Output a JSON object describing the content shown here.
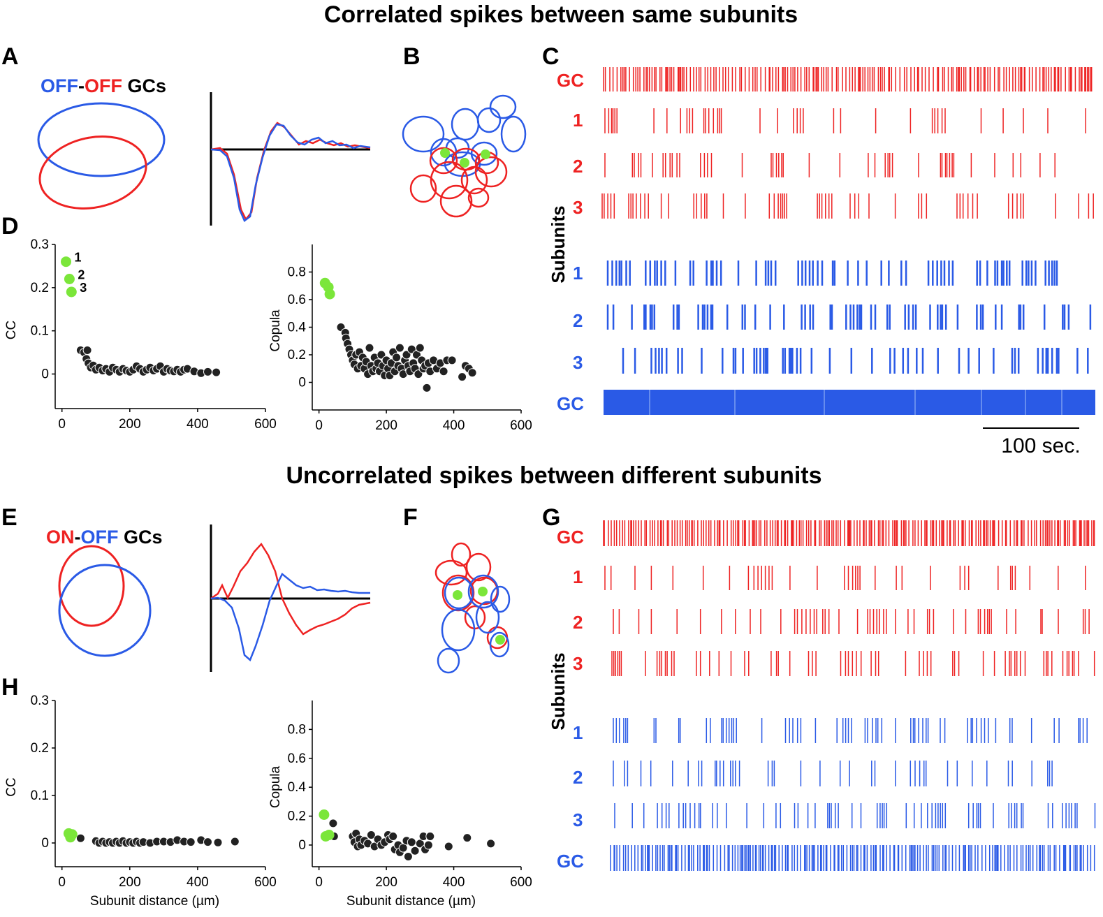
{
  "colors": {
    "red": "#ee2222",
    "blue": "#2a5ae6",
    "green": "#7be63a",
    "dot": "#222222",
    "axis": "#000000"
  },
  "top": {
    "title": "Correlated spikes between same subunits",
    "panel_A": "A",
    "panel_B": "B",
    "panel_C": "C",
    "panel_D": "D",
    "legend": {
      "part1": "OFF",
      "sep": "-",
      "part2": "OFF",
      "suffix": " GCs"
    },
    "raster": {
      "gc_label": "GC",
      "subunits_label": "Subunits",
      "labels": [
        "1",
        "2",
        "3"
      ]
    },
    "scale_label": "100 sec.",
    "green_labels": [
      "1",
      "2",
      "3"
    ]
  },
  "bottom": {
    "title": "Uncorrelated spikes between different subunits",
    "panel_E": "E",
    "panel_F": "F",
    "panel_G": "G",
    "panel_H": "H",
    "legend": {
      "part1": "ON",
      "sep": "-",
      "part2": "OFF",
      "suffix": " GCs"
    },
    "raster": {
      "gc_label": "GC",
      "subunits_label": "Subunits",
      "labels": [
        "1",
        "2",
        "3"
      ]
    }
  },
  "chart_data": [
    {
      "id": "D-left",
      "type": "scatter",
      "xlabel": "",
      "ylabel": "CC",
      "xlim": [
        -20,
        600
      ],
      "ylim": [
        -0.08,
        0.3
      ],
      "xticks": [
        "0",
        "200",
        "400",
        "600"
      ],
      "yticks": [
        "0",
        "0.1",
        "0.2",
        "0.3"
      ],
      "green": [
        [
          12,
          0.26
        ],
        [
          22,
          0.22
        ],
        [
          28,
          0.19
        ]
      ],
      "black": [
        [
          55,
          0.055
        ],
        [
          65,
          0.05
        ],
        [
          75,
          0.055
        ],
        [
          72,
          0.035
        ],
        [
          78,
          0.025
        ],
        [
          85,
          0.015
        ],
        [
          92,
          0.02
        ],
        [
          100,
          0.01
        ],
        [
          110,
          0.015
        ],
        [
          120,
          0.008
        ],
        [
          130,
          0.012
        ],
        [
          140,
          0.005
        ],
        [
          150,
          0.015
        ],
        [
          160,
          0.01
        ],
        [
          170,
          0.005
        ],
        [
          180,
          0.012
        ],
        [
          190,
          0.008
        ],
        [
          200,
          0.005
        ],
        [
          210,
          0.01
        ],
        [
          220,
          0.018
        ],
        [
          230,
          0.012
        ],
        [
          240,
          0.005
        ],
        [
          250,
          0.01
        ],
        [
          260,
          0.015
        ],
        [
          270,
          0.008
        ],
        [
          280,
          0.012
        ],
        [
          290,
          0.018
        ],
        [
          300,
          0.005
        ],
        [
          310,
          0.012
        ],
        [
          320,
          0.008
        ],
        [
          330,
          0.006
        ],
        [
          340,
          0.01
        ],
        [
          350,
          0.005
        ],
        [
          360,
          0.01
        ],
        [
          370,
          0.012
        ],
        [
          390,
          0.006
        ],
        [
          410,
          0.002
        ],
        [
          430,
          0.005
        ],
        [
          455,
          0.004
        ]
      ]
    },
    {
      "id": "D-right",
      "type": "scatter",
      "xlabel": "",
      "ylabel": "Copula",
      "xlim": [
        -20,
        600
      ],
      "ylim": [
        -0.2,
        1.0
      ],
      "xticks": [
        "0",
        "200",
        "400",
        "600"
      ],
      "yticks": [
        "0",
        "0.2",
        "0.4",
        "0.6",
        "0.8"
      ],
      "green": [
        [
          18,
          0.72
        ],
        [
          28,
          0.69
        ],
        [
          32,
          0.64
        ]
      ],
      "black": [
        [
          65,
          0.4
        ],
        [
          78,
          0.36
        ],
        [
          80,
          0.32
        ],
        [
          85,
          0.28
        ],
        [
          90,
          0.24
        ],
        [
          95,
          0.2
        ],
        [
          100,
          0.16
        ],
        [
          105,
          0.13
        ],
        [
          110,
          0.2
        ],
        [
          115,
          0.1
        ],
        [
          120,
          0.22
        ],
        [
          125,
          0.12
        ],
        [
          130,
          0.18
        ],
        [
          135,
          0.1
        ],
        [
          140,
          0.15
        ],
        [
          145,
          0.06
        ],
        [
          150,
          0.25
        ],
        [
          155,
          0.12
        ],
        [
          160,
          0.08
        ],
        [
          165,
          0.18
        ],
        [
          170,
          0.1
        ],
        [
          175,
          0.14
        ],
        [
          180,
          0.08
        ],
        [
          185,
          0.2
        ],
        [
          190,
          0.12
        ],
        [
          195,
          0.05
        ],
        [
          200,
          0.16
        ],
        [
          205,
          0.1
        ],
        [
          210,
          0.05
        ],
        [
          215,
          0.14
        ],
        [
          220,
          0.22
        ],
        [
          225,
          0.08
        ],
        [
          230,
          0.18
        ],
        [
          235,
          0.12
        ],
        [
          240,
          0.25
        ],
        [
          245,
          0.1
        ],
        [
          250,
          0.06
        ],
        [
          255,
          0.16
        ],
        [
          260,
          0.2
        ],
        [
          265,
          0.12
        ],
        [
          270,
          0.08
        ],
        [
          275,
          0.24
        ],
        [
          280,
          0.14
        ],
        [
          285,
          0.1
        ],
        [
          290,
          0.2
        ],
        [
          295,
          0.06
        ],
        [
          300,
          0.25
        ],
        [
          305,
          0.16
        ],
        [
          310,
          0.1
        ],
        [
          315,
          0.12
        ],
        [
          320,
          -0.04
        ],
        [
          325,
          0.14
        ],
        [
          330,
          0.08
        ],
        [
          340,
          0.16
        ],
        [
          350,
          0.1
        ],
        [
          360,
          0.14
        ],
        [
          370,
          0.08
        ],
        [
          380,
          0.16
        ],
        [
          395,
          0.16
        ],
        [
          425,
          0.04
        ],
        [
          435,
          0.12
        ],
        [
          445,
          0.1
        ],
        [
          455,
          0.07
        ]
      ]
    },
    {
      "id": "H-left",
      "type": "scatter",
      "xlabel": "Subunit distance (µm)",
      "ylabel": "CC",
      "xlim": [
        -20,
        600
      ],
      "ylim": [
        -0.05,
        0.3
      ],
      "xticks": [
        "0",
        "200",
        "400",
        "600"
      ],
      "yticks": [
        "0",
        "0.1",
        "0.2",
        "0.3"
      ],
      "green": [
        [
          20,
          0.02
        ],
        [
          25,
          0.012
        ],
        [
          30,
          0.018
        ]
      ],
      "black": [
        [
          55,
          0.01
        ],
        [
          100,
          0.004
        ],
        [
          110,
          0.0
        ],
        [
          120,
          0.003
        ],
        [
          130,
          0.0
        ],
        [
          140,
          0.002
        ],
        [
          150,
          0.0
        ],
        [
          160,
          0.003
        ],
        [
          170,
          0.0
        ],
        [
          180,
          0.004
        ],
        [
          190,
          0.0
        ],
        [
          200,
          0.002
        ],
        [
          210,
          0.0
        ],
        [
          220,
          0.003
        ],
        [
          230,
          0.0
        ],
        [
          240,
          0.002
        ],
        [
          260,
          0.0
        ],
        [
          280,
          0.003
        ],
        [
          300,
          0.003
        ],
        [
          320,
          0.002
        ],
        [
          340,
          0.006
        ],
        [
          360,
          0.003
        ],
        [
          380,
          0.002
        ],
        [
          410,
          0.006
        ],
        [
          430,
          0.002
        ],
        [
          460,
          0.001
        ],
        [
          510,
          0.003
        ]
      ]
    },
    {
      "id": "H-right",
      "type": "scatter",
      "xlabel": "Subunit distance (µm)",
      "ylabel": "Copula",
      "xlim": [
        -20,
        600
      ],
      "ylim": [
        -0.15,
        1.0
      ],
      "xticks": [
        "0",
        "200",
        "400",
        "600"
      ],
      "yticks": [
        "0",
        "0.2",
        "0.4",
        "0.6",
        "0.8"
      ],
      "green": [
        [
          15,
          0.21
        ],
        [
          20,
          0.06
        ],
        [
          30,
          0.07
        ]
      ],
      "black": [
        [
          42,
          0.15
        ],
        [
          45,
          0.06
        ],
        [
          100,
          0.06
        ],
        [
          105,
          0.02
        ],
        [
          110,
          0.08
        ],
        [
          115,
          -0.01
        ],
        [
          120,
          0.04
        ],
        [
          125,
          0.0
        ],
        [
          135,
          0.03
        ],
        [
          145,
          0.01
        ],
        [
          155,
          0.07
        ],
        [
          165,
          -0.01
        ],
        [
          175,
          0.04
        ],
        [
          185,
          0.0
        ],
        [
          195,
          0.02
        ],
        [
          205,
          0.07
        ],
        [
          210,
          0.04
        ],
        [
          220,
          0.06
        ],
        [
          225,
          -0.03
        ],
        [
          235,
          0.0
        ],
        [
          240,
          -0.05
        ],
        [
          250,
          -0.02
        ],
        [
          260,
          0.03
        ],
        [
          265,
          -0.08
        ],
        [
          275,
          0.02
        ],
        [
          285,
          -0.04
        ],
        [
          300,
          0.01
        ],
        [
          310,
          0.06
        ],
        [
          315,
          -0.03
        ],
        [
          325,
          0.0
        ],
        [
          330,
          0.06
        ],
        [
          385,
          -0.01
        ],
        [
          440,
          0.05
        ],
        [
          510,
          0.01
        ]
      ]
    }
  ]
}
